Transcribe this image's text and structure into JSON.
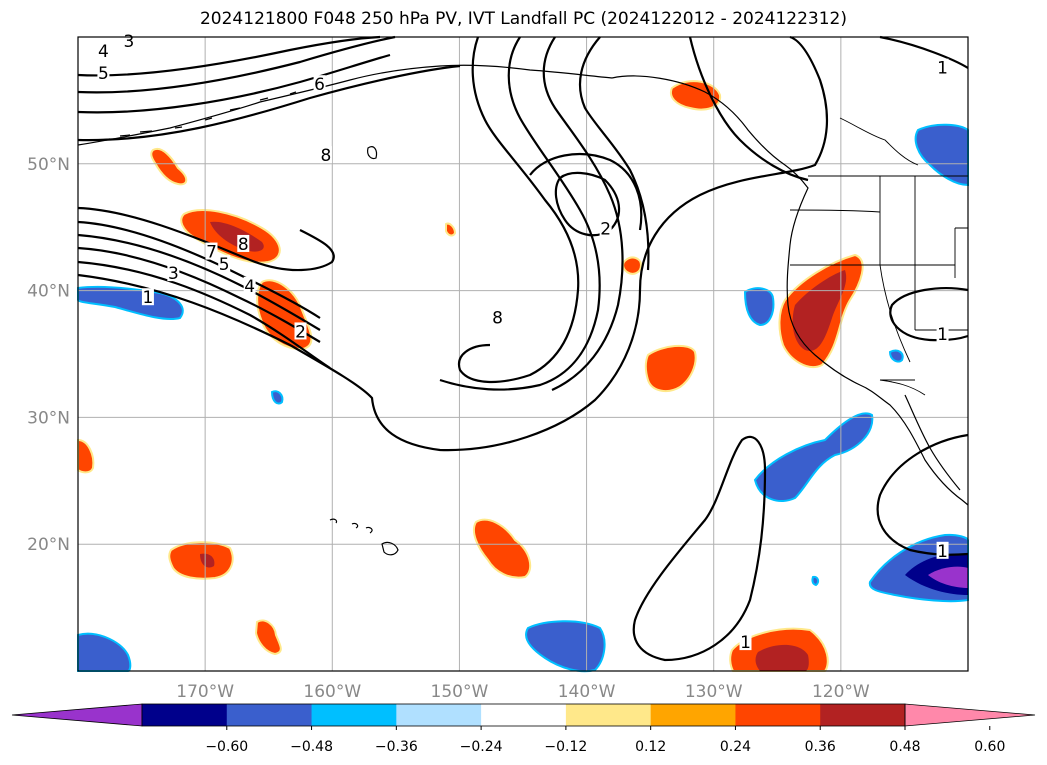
{
  "title": "2024121800 F048 250 hPa PV, IVT Landfall PC (2024122012 - 2024122312)",
  "map": {
    "lon_range": [
      -180,
      -110
    ],
    "lat_range": [
      10,
      60
    ],
    "lat_ticks": [
      {
        "lat": 50,
        "label": "50°N"
      },
      {
        "lat": 40,
        "label": "40°N"
      },
      {
        "lat": 30,
        "label": "30°N"
      },
      {
        "lat": 20,
        "label": "20°N"
      }
    ],
    "lon_ticks": [
      {
        "lon": -170,
        "label": "170°W"
      },
      {
        "lon": -160,
        "label": "160°W"
      },
      {
        "lon": -150,
        "label": "150°W"
      },
      {
        "lon": -140,
        "label": "140°W"
      },
      {
        "lon": -130,
        "label": "130°W"
      },
      {
        "lon": -120,
        "label": "120°W"
      }
    ],
    "contour_labels": [
      {
        "text": "4",
        "lon": -178,
        "lat": 58.8
      },
      {
        "text": "5",
        "lon": -178,
        "lat": 57.1
      },
      {
        "text": "3",
        "lon": -176,
        "lat": 59.6
      },
      {
        "text": "6",
        "lon": -161,
        "lat": 56.2
      },
      {
        "text": "8",
        "lon": -160.5,
        "lat": 50.6
      },
      {
        "text": "8",
        "lon": -167,
        "lat": 43.6
      },
      {
        "text": "7",
        "lon": -169.5,
        "lat": 43.0
      },
      {
        "text": "5",
        "lon": -168.5,
        "lat": 42.0
      },
      {
        "text": "3",
        "lon": -172.5,
        "lat": 41.3
      },
      {
        "text": "4",
        "lon": -166.5,
        "lat": 40.3
      },
      {
        "text": "1",
        "lon": -174.5,
        "lat": 39.4
      },
      {
        "text": "2",
        "lon": -162.5,
        "lat": 36.7
      },
      {
        "text": "8",
        "lon": -147,
        "lat": 37.8
      },
      {
        "text": "2",
        "lon": -138.5,
        "lat": 44.8
      },
      {
        "text": "1",
        "lon": -112,
        "lat": 57.5
      },
      {
        "text": "1",
        "lon": -112,
        "lat": 36.5
      },
      {
        "text": "1",
        "lon": -112,
        "lat": 19.4
      },
      {
        "text": "1",
        "lon": -127.5,
        "lat": 12.2
      }
    ]
  },
  "colorbar": {
    "levels": [
      -0.6,
      -0.48,
      -0.36,
      -0.24,
      -0.12,
      0.12,
      0.24,
      0.36,
      0.48,
      0.6
    ],
    "tick_labels": [
      "−0.60",
      "−0.48",
      "−0.36",
      "−0.24",
      "−0.12",
      "0.12",
      "0.24",
      "0.36",
      "0.48",
      "0.60"
    ],
    "colors": [
      "#9933cc",
      "#00008b",
      "#3a5fcd",
      "#00bfff",
      "#b0e0ff",
      "#ffffff",
      "#ffe88a",
      "#ffa500",
      "#ff4500",
      "#b22222",
      "#ff88aa"
    ],
    "extend": "both"
  },
  "colors": {
    "grid": "#b0b0b0",
    "coast": "#000000"
  }
}
